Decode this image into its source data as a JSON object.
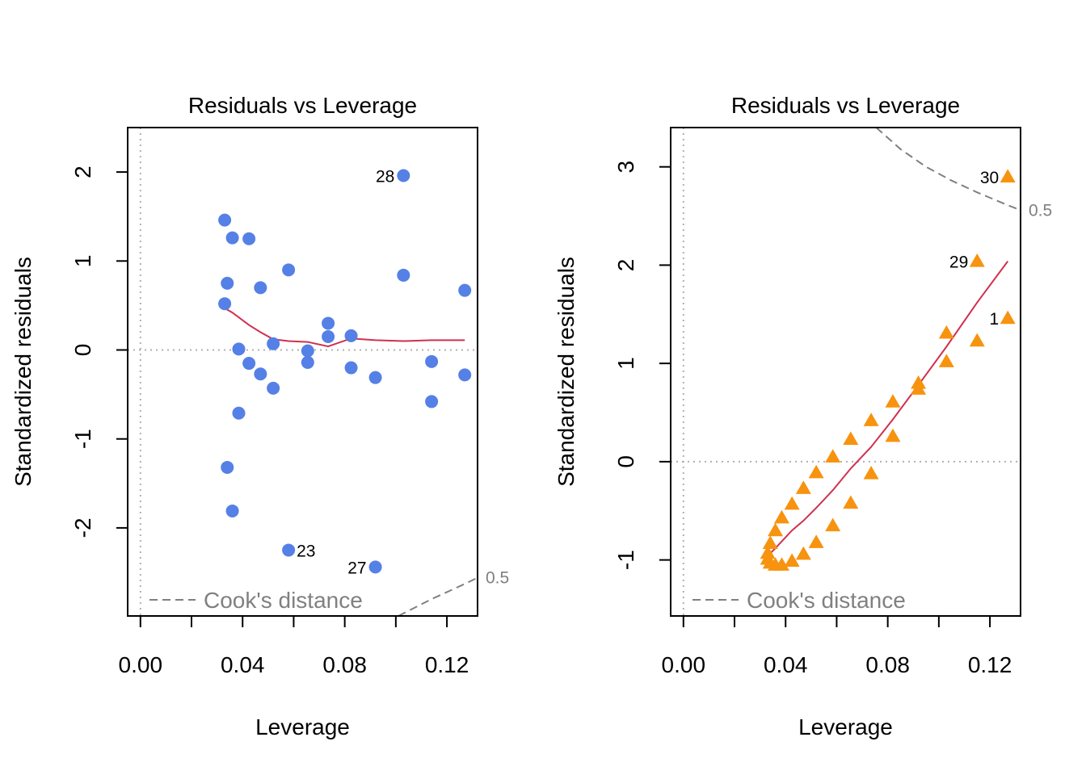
{
  "chart_data": [
    {
      "type": "scatter",
      "title": "Residuals vs Leverage",
      "xlabel": "Leverage",
      "ylabel": "Standardized residuals",
      "xlim": [
        -0.005,
        0.132
      ],
      "ylim": [
        -2.99,
        2.5
      ],
      "xticks": [
        0.0,
        0.02,
        0.04,
        0.06,
        0.08,
        0.1,
        0.12
      ],
      "xtick_labels": [
        {
          "value": 0.0,
          "label": "0.00"
        },
        {
          "value": 0.04,
          "label": "0.04"
        },
        {
          "value": 0.08,
          "label": "0.08"
        },
        {
          "value": 0.12,
          "label": "0.12"
        }
      ],
      "yticks": [
        -2,
        -1,
        0,
        1,
        2
      ],
      "ytick_labels": [
        "-2",
        "-1",
        "0",
        "1",
        "2"
      ],
      "marker": "circle",
      "point_color": "#5580e6",
      "points": [
        [
          0.033,
          1.46
        ],
        [
          0.036,
          1.26
        ],
        [
          0.0425,
          1.25
        ],
        [
          0.034,
          0.75
        ],
        [
          0.047,
          0.7
        ],
        [
          0.058,
          0.9
        ],
        [
          0.103,
          0.84
        ],
        [
          0.127,
          0.67
        ],
        [
          0.033,
          0.52
        ],
        [
          0.0735,
          0.3
        ],
        [
          0.0735,
          0.15
        ],
        [
          0.0825,
          0.16
        ],
        [
          0.052,
          0.07
        ],
        [
          0.0385,
          0.01
        ],
        [
          0.0655,
          -0.01
        ],
        [
          0.0425,
          -0.15
        ],
        [
          0.0655,
          -0.14
        ],
        [
          0.047,
          -0.27
        ],
        [
          0.0825,
          -0.2
        ],
        [
          0.092,
          -0.31
        ],
        [
          0.114,
          -0.13
        ],
        [
          0.127,
          -0.28
        ],
        [
          0.052,
          -0.43
        ],
        [
          0.114,
          -0.58
        ],
        [
          0.0385,
          -0.71
        ],
        [
          0.034,
          -1.32
        ],
        [
          0.036,
          -1.81
        ],
        [
          0.058,
          -2.25
        ],
        [
          0.092,
          -2.44
        ],
        [
          0.103,
          1.96
        ]
      ],
      "point_labels": [
        {
          "label": "28",
          "x": 0.103,
          "y": 1.96,
          "side": "left"
        },
        {
          "label": "23",
          "x": 0.058,
          "y": -2.25,
          "side": "right"
        },
        {
          "label": "27",
          "x": 0.092,
          "y": -2.44,
          "side": "left"
        }
      ],
      "smooth_line": [
        [
          0.033,
          0.47
        ],
        [
          0.036,
          0.42
        ],
        [
          0.0425,
          0.28
        ],
        [
          0.047,
          0.2
        ],
        [
          0.052,
          0.12
        ],
        [
          0.058,
          0.1
        ],
        [
          0.0655,
          0.09
        ],
        [
          0.0735,
          0.04
        ],
        [
          0.0825,
          0.13
        ],
        [
          0.092,
          0.11
        ],
        [
          0.103,
          0.1
        ],
        [
          0.114,
          0.11
        ],
        [
          0.127,
          0.11
        ]
      ],
      "cooks_contours": [
        {
          "label": "0.5",
          "points": [
            [
              0.101,
              -2.99
            ],
            [
              0.114,
              -2.8
            ],
            [
              0.127,
              -2.63
            ],
            [
              0.132,
              -2.56
            ]
          ]
        }
      ],
      "legend": {
        "label": "Cook's distance",
        "position": "bottom-left"
      },
      "colors": {
        "smooth": "#d03050",
        "cooks": "#808080",
        "ref_line": "#b0b0b0"
      }
    },
    {
      "type": "scatter",
      "title": "Residuals vs Leverage",
      "xlabel": "Leverage",
      "ylabel": "Standardized residuals",
      "xlim": [
        -0.005,
        0.132
      ],
      "ylim": [
        -1.57,
        3.4
      ],
      "xticks": [
        0.0,
        0.02,
        0.04,
        0.06,
        0.08,
        0.1,
        0.12
      ],
      "xtick_labels": [
        {
          "value": 0.0,
          "label": "0.00"
        },
        {
          "value": 0.04,
          "label": "0.04"
        },
        {
          "value": 0.08,
          "label": "0.08"
        },
        {
          "value": 0.12,
          "label": "0.12"
        }
      ],
      "yticks": [
        -1,
        0,
        1,
        2,
        3
      ],
      "ytick_labels": [
        "-1",
        "0",
        "1",
        "2",
        "3"
      ],
      "marker": "triangle",
      "point_color": "#f7930f",
      "points": [
        [
          0.127,
          2.9
        ],
        [
          0.115,
          2.04
        ],
        [
          0.127,
          1.46
        ],
        [
          0.103,
          1.31
        ],
        [
          0.115,
          1.23
        ],
        [
          0.103,
          1.02
        ],
        [
          0.092,
          0.8
        ],
        [
          0.092,
          0.74
        ],
        [
          0.082,
          0.61
        ],
        [
          0.082,
          0.26
        ],
        [
          0.0735,
          0.42
        ],
        [
          0.0735,
          -0.12
        ],
        [
          0.0655,
          0.23
        ],
        [
          0.0655,
          -0.42
        ],
        [
          0.0585,
          0.05
        ],
        [
          0.0585,
          -0.65
        ],
        [
          0.052,
          -0.11
        ],
        [
          0.052,
          -0.82
        ],
        [
          0.047,
          -0.27
        ],
        [
          0.047,
          -0.94
        ],
        [
          0.0425,
          -0.43
        ],
        [
          0.0425,
          -1.01
        ],
        [
          0.0385,
          -0.57
        ],
        [
          0.0385,
          -1.05
        ],
        [
          0.036,
          -0.7
        ],
        [
          0.036,
          -1.05
        ],
        [
          0.034,
          -0.83
        ],
        [
          0.034,
          -1.03
        ],
        [
          0.033,
          -0.93
        ],
        [
          0.033,
          -0.99
        ]
      ],
      "point_labels": [
        {
          "label": "30",
          "x": 0.127,
          "y": 2.9,
          "side": "left"
        },
        {
          "label": "29",
          "x": 0.115,
          "y": 2.04,
          "side": "left"
        },
        {
          "label": "1",
          "x": 0.127,
          "y": 1.46,
          "side": "left"
        }
      ],
      "smooth_line": [
        [
          0.033,
          -0.96
        ],
        [
          0.036,
          -0.88
        ],
        [
          0.0425,
          -0.7
        ],
        [
          0.047,
          -0.6
        ],
        [
          0.052,
          -0.47
        ],
        [
          0.0585,
          -0.29
        ],
        [
          0.0655,
          -0.07
        ],
        [
          0.0735,
          0.15
        ],
        [
          0.082,
          0.43
        ],
        [
          0.092,
          0.78
        ],
        [
          0.103,
          1.17
        ],
        [
          0.115,
          1.62
        ],
        [
          0.127,
          2.04
        ]
      ],
      "cooks_contours": [
        {
          "label": "0.5",
          "points": [
            [
              0.0755,
              3.4
            ],
            [
              0.085,
              3.18
            ],
            [
              0.095,
              3.0
            ],
            [
              0.105,
              2.86
            ],
            [
              0.115,
              2.74
            ],
            [
              0.127,
              2.61
            ],
            [
              0.132,
              2.56
            ]
          ]
        }
      ],
      "legend": {
        "label": "Cook's distance",
        "position": "bottom-left"
      },
      "colors": {
        "smooth": "#d03050",
        "cooks": "#808080",
        "ref_line": "#b0b0b0"
      }
    }
  ]
}
